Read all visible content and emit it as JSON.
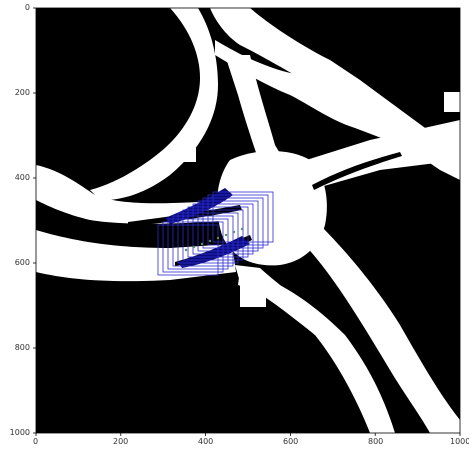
{
  "figure": {
    "x_ticks": [
      "0",
      "200",
      "400",
      "600",
      "800",
      "1000"
    ],
    "y_ticks": [
      "0",
      "200",
      "400",
      "600",
      "800",
      "1000"
    ],
    "x_range": [
      0,
      1000
    ],
    "y_range": [
      0,
      1000
    ],
    "colors": {
      "background": "#000000",
      "road": "#ffffff",
      "box": "#2b2bd1",
      "vehicle": "#0b0b7a",
      "trajectory": "#5a8f5a"
    }
  }
}
